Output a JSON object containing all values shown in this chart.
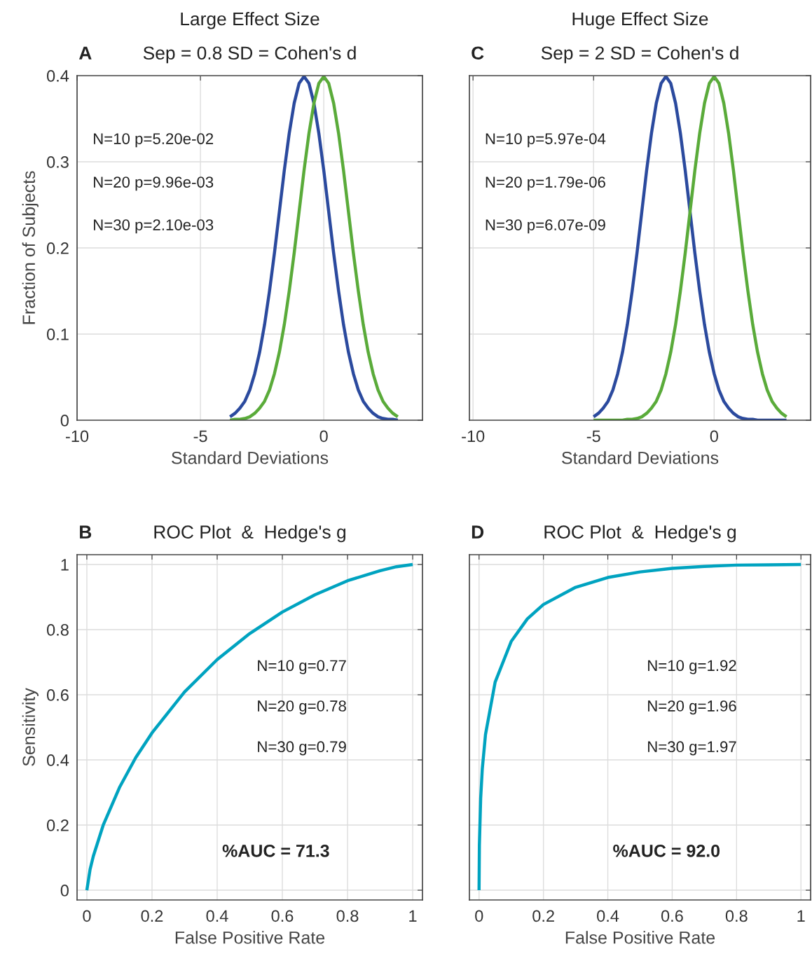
{
  "chart_data": [
    {
      "type": "line",
      "title": "Large Effect Size",
      "subtitle": "Sep = 0.8 SD = Cohen's d",
      "xlabel": "Standard Deviations",
      "ylabel": "Fraction of Subjects",
      "x": [
        -3.8,
        -3.6,
        -3.4,
        -3.2,
        -3.0,
        -2.8,
        -2.6,
        -2.4,
        -2.2,
        -2.0,
        -1.8,
        -1.6,
        -1.4,
        -1.2,
        -1.0,
        -0.8,
        -0.6,
        -0.4,
        -0.2,
        0,
        0.2,
        0.4,
        0.6,
        0.8,
        1.0,
        1.2,
        1.4,
        1.6,
        1.8,
        2.0,
        2.2,
        2.4,
        2.6,
        2.8,
        3.0
      ],
      "series": [
        {
          "color": "#2b4a9e",
          "values": [
            0.004,
            0.008,
            0.014,
            0.022,
            0.035,
            0.054,
            0.079,
            0.111,
            0.15,
            0.194,
            0.242,
            0.29,
            0.333,
            0.368,
            0.391,
            0.399,
            0.391,
            0.368,
            0.333,
            0.29,
            0.242,
            0.194,
            0.15,
            0.111,
            0.079,
            0.054,
            0.035,
            0.022,
            0.014,
            0.008,
            0.004,
            0.002,
            0.001,
            0.001,
            0.0
          ]
        },
        {
          "color": "#5aab3a",
          "values": [
            0.0,
            0.001,
            0.001,
            0.002,
            0.004,
            0.008,
            0.014,
            0.022,
            0.035,
            0.054,
            0.079,
            0.111,
            0.15,
            0.194,
            0.242,
            0.29,
            0.333,
            0.368,
            0.391,
            0.399,
            0.391,
            0.368,
            0.333,
            0.29,
            0.242,
            0.194,
            0.15,
            0.111,
            0.079,
            0.054,
            0.035,
            0.022,
            0.014,
            0.008,
            0.004
          ]
        }
      ],
      "xlim": [
        -10,
        4
      ],
      "ylim": [
        0,
        0.4
      ],
      "xticks": [
        -10,
        -5,
        0
      ],
      "yticks": [
        0,
        0.1,
        0.2,
        0.3,
        0.4
      ],
      "grid": true,
      "annotations": [
        "A",
        "N=10 p=5.20e-02",
        "N=20 p=9.96e-03",
        "N=30 p=2.10e-03"
      ]
    },
    {
      "type": "line",
      "title": "Huge Effect Size",
      "subtitle": "Sep = 2 SD = Cohen's d",
      "xlabel": "Standard Deviations",
      "x": [
        -5.0,
        -4.8,
        -4.6,
        -4.4,
        -4.2,
        -4.0,
        -3.8,
        -3.6,
        -3.4,
        -3.2,
        -3.0,
        -2.8,
        -2.6,
        -2.4,
        -2.2,
        -2.0,
        -1.8,
        -1.6,
        -1.4,
        -1.2,
        -1.0,
        -0.8,
        -0.6,
        -0.4,
        -0.2,
        0,
        0.2,
        0.4,
        0.6,
        0.8,
        1.0,
        1.2,
        1.4,
        1.6,
        1.8,
        2.0,
        2.2,
        2.4,
        2.6,
        2.8,
        3.0
      ],
      "series": [
        {
          "color": "#2b4a9e",
          "values": [
            0.004,
            0.008,
            0.014,
            0.022,
            0.035,
            0.054,
            0.079,
            0.111,
            0.15,
            0.194,
            0.242,
            0.29,
            0.333,
            0.368,
            0.391,
            0.399,
            0.391,
            0.368,
            0.333,
            0.29,
            0.242,
            0.194,
            0.15,
            0.111,
            0.079,
            0.054,
            0.035,
            0.022,
            0.014,
            0.008,
            0.004,
            0.002,
            0.001,
            0.001,
            0.0,
            0.0,
            0.0,
            0.0,
            0.0,
            0.0,
            0.0
          ]
        },
        {
          "color": "#5aab3a",
          "values": [
            0.0,
            0.0,
            0.0,
            0.0,
            0.0,
            0.0,
            0.0,
            0.001,
            0.001,
            0.002,
            0.004,
            0.008,
            0.014,
            0.022,
            0.035,
            0.054,
            0.079,
            0.111,
            0.15,
            0.194,
            0.242,
            0.29,
            0.333,
            0.368,
            0.391,
            0.399,
            0.391,
            0.368,
            0.333,
            0.29,
            0.242,
            0.194,
            0.15,
            0.111,
            0.079,
            0.054,
            0.035,
            0.022,
            0.014,
            0.008,
            0.004
          ]
        }
      ],
      "xlim": [
        -10.15,
        4
      ],
      "ylim": [
        0,
        0.4
      ],
      "xticks": [
        -10,
        -5,
        0
      ],
      "yticks": [
        0,
        0.1,
        0.2,
        0.3,
        0.4
      ],
      "grid": true,
      "tick_labels": "x",
      "annotations": [
        "C",
        "N=10 p=5.97e-04",
        "N=20 p=1.79e-06",
        "N=30 p=6.07e-09"
      ]
    },
    {
      "type": "line",
      "title": "ROC Plot  &  Hedge's g",
      "xlabel": "False Positive Rate",
      "ylabel": "Sensitivity",
      "x": [
        0,
        0.01,
        0.02,
        0.05,
        0.1,
        0.15,
        0.2,
        0.3,
        0.4,
        0.5,
        0.6,
        0.7,
        0.8,
        0.9,
        0.95,
        1
      ],
      "series": [
        {
          "color": "#00a3c0",
          "values": [
            0,
            0.064,
            0.105,
            0.199,
            0.315,
            0.407,
            0.483,
            0.609,
            0.708,
            0.788,
            0.854,
            0.907,
            0.95,
            0.981,
            0.993,
            1
          ]
        }
      ],
      "xlim": [
        -0.03,
        1.03
      ],
      "ylim": [
        -0.03,
        1.03
      ],
      "xticks": [
        0,
        0.2,
        0.4,
        0.6,
        0.8,
        1
      ],
      "yticks": [
        0,
        0.2,
        0.4,
        0.6,
        0.8,
        1
      ],
      "grid": true,
      "annotations": [
        "B",
        "N=10 g=0.77",
        "N=20 g=0.78",
        "N=30 g=0.79",
        "%AUC = 71.3"
      ]
    },
    {
      "type": "line",
      "title": "ROC Plot  &  Hedge's g",
      "xlabel": "False Positive Rate",
      "x": [
        0,
        0.001,
        0.005,
        0.01,
        0.02,
        0.05,
        0.1,
        0.15,
        0.2,
        0.3,
        0.4,
        0.5,
        0.6,
        0.7,
        0.8,
        0.9,
        1
      ],
      "series": [
        {
          "color": "#00a3c0",
          "values": [
            0,
            0.138,
            0.282,
            0.372,
            0.478,
            0.639,
            0.764,
            0.833,
            0.877,
            0.93,
            0.96,
            0.977,
            0.988,
            0.994,
            0.998,
            0.999,
            1
          ]
        }
      ],
      "xlim": [
        -0.03,
        1.03
      ],
      "ylim": [
        -0.03,
        1.03
      ],
      "xticks": [
        0,
        0.2,
        0.4,
        0.6,
        0.8,
        1
      ],
      "yticks": [
        0,
        0.2,
        0.4,
        0.6,
        0.8,
        1
      ],
      "grid": true,
      "tick_labels": "x",
      "annotations": [
        "D",
        "N=10 g=1.92",
        "N=20 g=1.96",
        "N=30 g=1.97",
        "%AUC = 92.0"
      ]
    }
  ]
}
